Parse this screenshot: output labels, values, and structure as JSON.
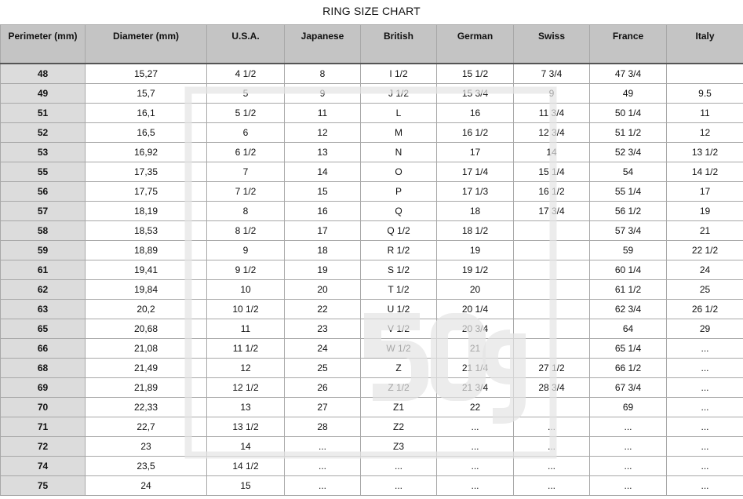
{
  "title": "RING SIZE CHART",
  "watermark": "50g",
  "colors": {
    "header_bg": "#c4c4c4",
    "first_col_bg": "#dcdcdc",
    "border": "#a8a8a8"
  },
  "columns": [
    "Perimeter (mm)",
    "Diameter (mm)",
    "U.S.A.",
    "Japanese",
    "British",
    "German",
    "Swiss",
    "France",
    "Italy"
  ],
  "rows": [
    [
      "48",
      "15,27",
      "4 1/2",
      "8",
      "I 1/2",
      "15 1/2",
      "7 3/4",
      "47 3/4",
      ""
    ],
    [
      "49",
      "15,7",
      "5",
      "9",
      "J 1/2",
      "15 3/4",
      "9",
      "49",
      "9.5"
    ],
    [
      "51",
      "16,1",
      "5 1/2",
      "11",
      "L",
      "16",
      "11 3/4",
      "50 1/4",
      "11"
    ],
    [
      "52",
      "16,5",
      "6",
      "12",
      "M",
      "16 1/2",
      "12 3/4",
      "51 1/2",
      "12"
    ],
    [
      "53",
      "16,92",
      "6 1/2",
      "13",
      "N",
      "17",
      "14",
      "52 3/4",
      "13 1/2"
    ],
    [
      "55",
      "17,35",
      "7",
      "14",
      "O",
      "17 1/4",
      "15 1/4",
      "54",
      "14 1/2"
    ],
    [
      "56",
      "17,75",
      "7 1/2",
      "15",
      "P",
      "17 1/3",
      "16 1/2",
      "55 1/4",
      "17"
    ],
    [
      "57",
      "18,19",
      "8",
      "16",
      "Q",
      "18",
      "17 3/4",
      "56 1/2",
      "19"
    ],
    [
      "58",
      "18,53",
      "8 1/2",
      "17",
      "Q 1/2",
      "18 1/2",
      "",
      "57 3/4",
      "21"
    ],
    [
      "59",
      "18,89",
      "9",
      "18",
      "R 1/2",
      "19",
      "",
      "59",
      "22 1/2"
    ],
    [
      "61",
      "19,41",
      "9 1/2",
      "19",
      "S 1/2",
      "19 1/2",
      "",
      "60 1/4",
      "24"
    ],
    [
      "62",
      "19,84",
      "10",
      "20",
      "T 1/2",
      "20",
      "",
      "61 1/2",
      "25"
    ],
    [
      "63",
      "20,2",
      "10 1/2",
      "22",
      "U 1/2",
      "20 1/4",
      "",
      "62 3/4",
      "26 1/2"
    ],
    [
      "65",
      "20,68",
      "11",
      "23",
      "V 1/2",
      "20 3/4",
      "",
      "64",
      "29"
    ],
    [
      "66",
      "21,08",
      "11 1/2",
      "24",
      "W 1/2",
      "21",
      "",
      "65 1/4",
      "..."
    ],
    [
      "68",
      "21,49",
      "12",
      "25",
      "Z",
      "21 1/4",
      "27 1/2",
      "66 1/2",
      "..."
    ],
    [
      "69",
      "21,89",
      "12 1/2",
      "26",
      "Z 1/2",
      "21 3/4",
      "28 3/4",
      "67 3/4",
      "..."
    ],
    [
      "70",
      "22,33",
      "13",
      "27",
      "Z1",
      "22",
      "",
      "69",
      "..."
    ],
    [
      "71",
      "22,7",
      "13 1/2",
      "28",
      "Z2",
      "...",
      "...",
      "...",
      "..."
    ],
    [
      "72",
      "23",
      "14",
      "...",
      "Z3",
      "...",
      "...",
      "...",
      "..."
    ],
    [
      "74",
      "23,5",
      "14 1/2",
      "...",
      "...",
      "...",
      "...",
      "...",
      "..."
    ],
    [
      "75",
      "24",
      "15",
      "...",
      "...",
      "...",
      "...",
      "...",
      "..."
    ]
  ]
}
